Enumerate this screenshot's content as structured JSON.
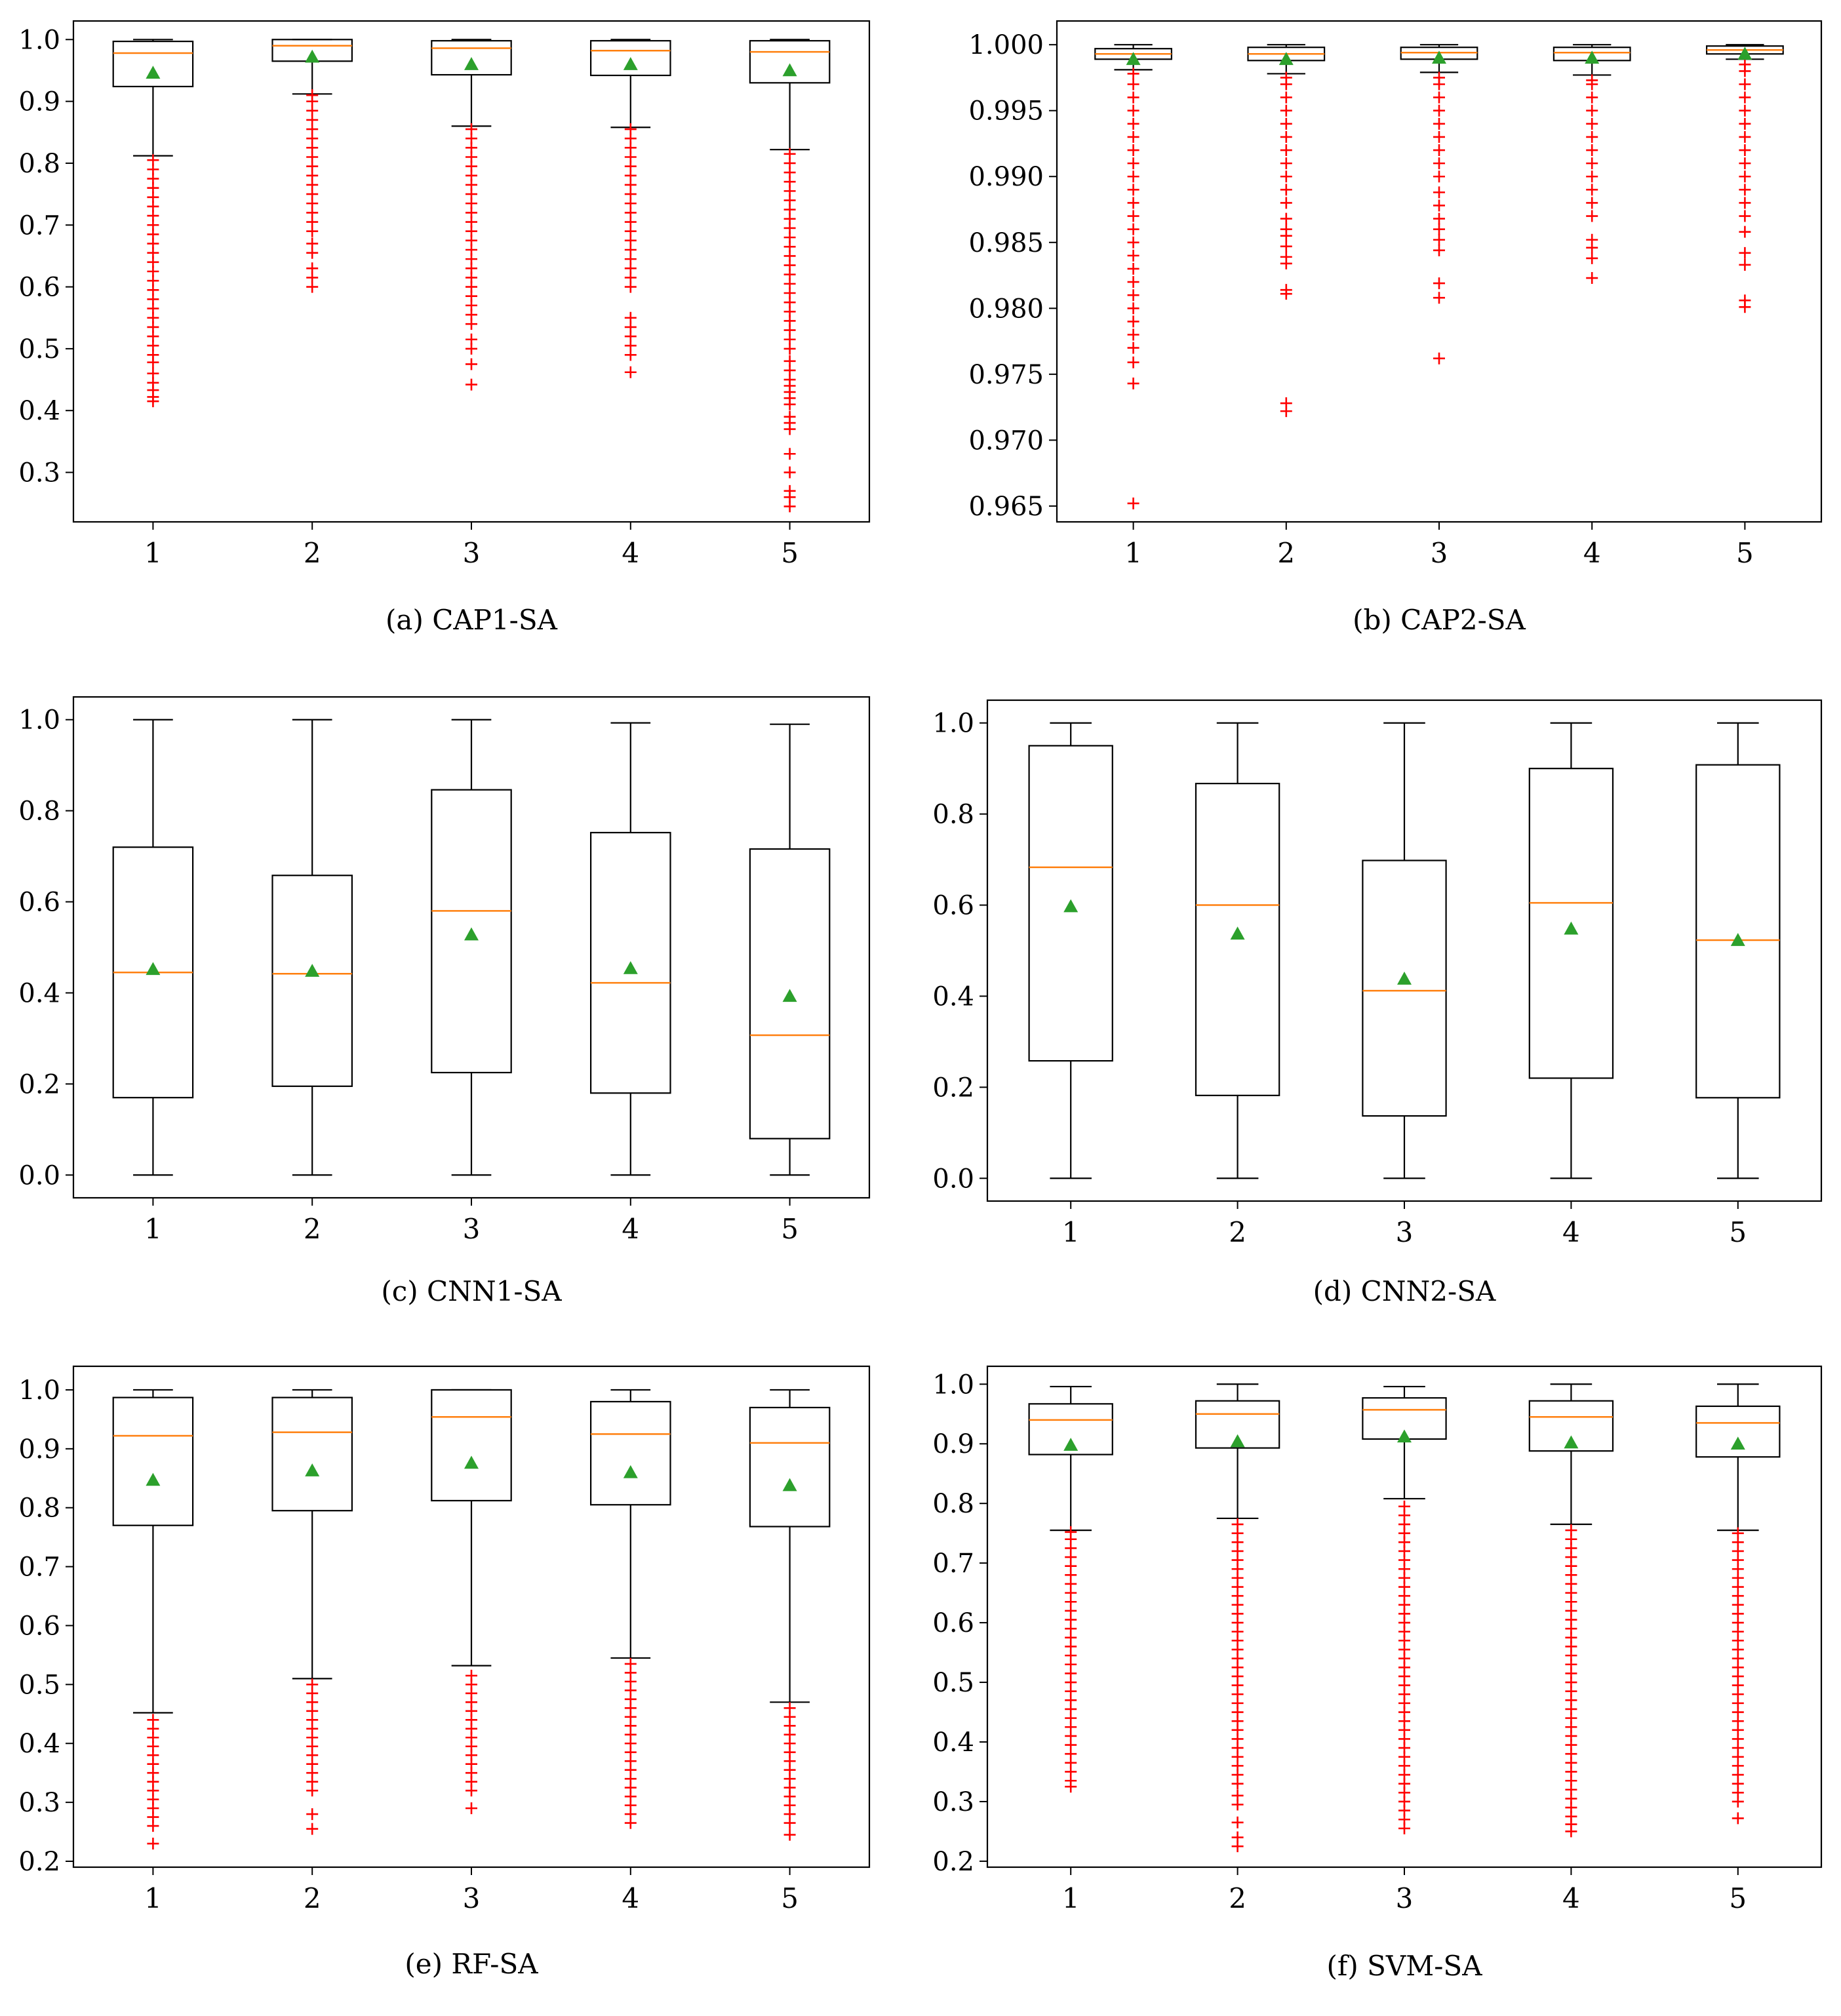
{
  "chart_data": [
    {
      "type": "box",
      "caption": "(a) CAP1-SA",
      "categories": [
        "1",
        "2",
        "3",
        "4",
        "5"
      ],
      "ylim": [
        0.22,
        1.03
      ],
      "yticks": [
        0.3,
        0.4,
        0.5,
        0.6,
        0.7,
        0.8,
        0.9,
        1.0
      ],
      "tick_labels": [
        "0.3",
        "0.4",
        "0.5",
        "0.6",
        "0.7",
        "0.8",
        "0.9",
        "1.0"
      ],
      "boxes": [
        {
          "whisker_low": 0.812,
          "q1": 0.924,
          "median": 0.978,
          "q3": 0.997,
          "whisker_high": 1.0,
          "mean": 0.946,
          "outliers": [
            0.415,
            0.422,
            0.433,
            0.445,
            0.46,
            0.478,
            0.49,
            0.505,
            0.52,
            0.535,
            0.55,
            0.565,
            0.58,
            0.595,
            0.61,
            0.625,
            0.64,
            0.655,
            0.67,
            0.685,
            0.7,
            0.715,
            0.73,
            0.745,
            0.76,
            0.775,
            0.79,
            0.805
          ]
        },
        {
          "whisker_low": 0.912,
          "q1": 0.965,
          "median": 0.99,
          "q3": 1.0,
          "whisker_high": 1.0,
          "mean": 0.972,
          "outliers": [
            0.6,
            0.615,
            0.63,
            0.655,
            0.67,
            0.69,
            0.705,
            0.72,
            0.735,
            0.75,
            0.765,
            0.78,
            0.795,
            0.81,
            0.825,
            0.84,
            0.855,
            0.87,
            0.885,
            0.9,
            0.91
          ]
        },
        {
          "whisker_low": 0.86,
          "q1": 0.943,
          "median": 0.986,
          "q3": 0.998,
          "whisker_high": 1.0,
          "mean": 0.96,
          "outliers": [
            0.442,
            0.475,
            0.5,
            0.515,
            0.54,
            0.555,
            0.57,
            0.585,
            0.6,
            0.615,
            0.63,
            0.645,
            0.66,
            0.675,
            0.69,
            0.705,
            0.72,
            0.735,
            0.75,
            0.765,
            0.78,
            0.795,
            0.81,
            0.825,
            0.84,
            0.855
          ]
        },
        {
          "whisker_low": 0.858,
          "q1": 0.942,
          "median": 0.982,
          "q3": 0.998,
          "whisker_high": 1.0,
          "mean": 0.96,
          "outliers": [
            0.462,
            0.49,
            0.505,
            0.52,
            0.535,
            0.55,
            0.6,
            0.615,
            0.63,
            0.645,
            0.66,
            0.675,
            0.69,
            0.705,
            0.72,
            0.735,
            0.75,
            0.765,
            0.78,
            0.795,
            0.81,
            0.825,
            0.84,
            0.855
          ]
        },
        {
          "whisker_low": 0.822,
          "q1": 0.93,
          "median": 0.98,
          "q3": 0.998,
          "whisker_high": 1.0,
          "mean": 0.95,
          "outliers": [
            0.245,
            0.26,
            0.27,
            0.3,
            0.33,
            0.37,
            0.38,
            0.39,
            0.41,
            0.42,
            0.43,
            0.44,
            0.45,
            0.465,
            0.48,
            0.5,
            0.515,
            0.53,
            0.545,
            0.56,
            0.575,
            0.59,
            0.605,
            0.62,
            0.635,
            0.65,
            0.665,
            0.68,
            0.695,
            0.71,
            0.725,
            0.74,
            0.755,
            0.77,
            0.785,
            0.8,
            0.815
          ]
        }
      ]
    },
    {
      "type": "box",
      "caption": "(b) CAP2-SA",
      "categories": [
        "1",
        "2",
        "3",
        "4",
        "5"
      ],
      "ylim": [
        0.9638,
        1.0018
      ],
      "yticks": [
        0.965,
        0.97,
        0.975,
        0.98,
        0.985,
        0.99,
        0.995,
        1.0
      ],
      "tick_labels": [
        "0.965",
        "0.970",
        "0.975",
        "0.980",
        "0.985",
        "0.990",
        "0.995",
        "1.000"
      ],
      "boxes": [
        {
          "whisker_low": 0.9981,
          "q1": 0.9989,
          "median": 0.9993,
          "q3": 0.9997,
          "whisker_high": 1.0,
          "mean": 0.9989,
          "outliers": [
            0.9652,
            0.9743,
            0.9759,
            0.977,
            0.978,
            0.979,
            0.98,
            0.981,
            0.982,
            0.983,
            0.984,
            0.985,
            0.986,
            0.987,
            0.988,
            0.989,
            0.99,
            0.991,
            0.992,
            0.993,
            0.994,
            0.995,
            0.996,
            0.997,
            0.9978
          ]
        },
        {
          "whisker_low": 0.9978,
          "q1": 0.9988,
          "median": 0.9993,
          "q3": 0.9998,
          "whisker_high": 1.0,
          "mean": 0.9989,
          "outliers": [
            0.9722,
            0.9728,
            0.9811,
            0.9814,
            0.9834,
            0.9839,
            0.9847,
            0.9855,
            0.986,
            0.9868,
            0.988,
            0.989,
            0.99,
            0.991,
            0.992,
            0.993,
            0.994,
            0.995,
            0.996,
            0.997,
            0.9975
          ]
        },
        {
          "whisker_low": 0.9979,
          "q1": 0.9989,
          "median": 0.9994,
          "q3": 0.9998,
          "whisker_high": 1.0,
          "mean": 0.999,
          "outliers": [
            0.9762,
            0.9808,
            0.9819,
            0.9844,
            0.9852,
            0.986,
            0.9868,
            0.9878,
            0.9888,
            0.99,
            0.991,
            0.992,
            0.993,
            0.994,
            0.995,
            0.996,
            0.997,
            0.9975
          ]
        },
        {
          "whisker_low": 0.9977,
          "q1": 0.9988,
          "median": 0.9994,
          "q3": 0.9998,
          "whisker_high": 1.0,
          "mean": 0.999,
          "outliers": [
            0.9823,
            0.9838,
            0.9846,
            0.9852,
            0.987,
            0.988,
            0.989,
            0.99,
            0.991,
            0.992,
            0.993,
            0.994,
            0.995,
            0.996,
            0.997,
            0.9973
          ]
        },
        {
          "whisker_low": 0.9989,
          "q1": 0.9993,
          "median": 0.9996,
          "q3": 0.9999,
          "whisker_high": 1.0,
          "mean": 0.9993,
          "outliers": [
            0.9801,
            0.9806,
            0.9833,
            0.9842,
            0.9858,
            0.987,
            0.988,
            0.989,
            0.99,
            0.991,
            0.992,
            0.993,
            0.994,
            0.995,
            0.996,
            0.997,
            0.998,
            0.9985
          ]
        }
      ]
    },
    {
      "type": "box",
      "caption": "(c) CNN1-SA",
      "categories": [
        "1",
        "2",
        "3",
        "4",
        "5"
      ],
      "ylim": [
        -0.05,
        1.05
      ],
      "yticks": [
        0.0,
        0.2,
        0.4,
        0.6,
        0.8,
        1.0
      ],
      "tick_labels": [
        "0.0",
        "0.2",
        "0.4",
        "0.6",
        "0.8",
        "1.0"
      ],
      "boxes": [
        {
          "whisker_low": 0.0,
          "q1": 0.17,
          "median": 0.445,
          "q3": 0.72,
          "whisker_high": 1.0,
          "mean": 0.452,
          "outliers": []
        },
        {
          "whisker_low": 0.0,
          "q1": 0.195,
          "median": 0.442,
          "q3": 0.658,
          "whisker_high": 1.0,
          "mean": 0.448,
          "outliers": []
        },
        {
          "whisker_low": 0.0,
          "q1": 0.225,
          "median": 0.58,
          "q3": 0.846,
          "whisker_high": 1.0,
          "mean": 0.528,
          "outliers": []
        },
        {
          "whisker_low": 0.0,
          "q1": 0.18,
          "median": 0.422,
          "q3": 0.752,
          "whisker_high": 0.993,
          "mean": 0.454,
          "outliers": []
        },
        {
          "whisker_low": 0.0,
          "q1": 0.08,
          "median": 0.307,
          "q3": 0.716,
          "whisker_high": 0.99,
          "mean": 0.393,
          "outliers": []
        }
      ]
    },
    {
      "type": "box",
      "caption": "(d) CNN2-SA",
      "categories": [
        "1",
        "2",
        "3",
        "4",
        "5"
      ],
      "ylim": [
        -0.05,
        1.05
      ],
      "yticks": [
        0.0,
        0.2,
        0.4,
        0.6,
        0.8,
        1.0
      ],
      "tick_labels": [
        "0.0",
        "0.2",
        "0.4",
        "0.6",
        "0.8",
        "1.0"
      ],
      "boxes": [
        {
          "whisker_low": 0.0,
          "q1": 0.258,
          "median": 0.683,
          "q3": 0.95,
          "whisker_high": 1.0,
          "mean": 0.597,
          "outliers": []
        },
        {
          "whisker_low": 0.0,
          "q1": 0.182,
          "median": 0.6,
          "q3": 0.867,
          "whisker_high": 1.0,
          "mean": 0.537,
          "outliers": []
        },
        {
          "whisker_low": 0.0,
          "q1": 0.137,
          "median": 0.412,
          "q3": 0.698,
          "whisker_high": 1.0,
          "mean": 0.438,
          "outliers": []
        },
        {
          "whisker_low": 0.0,
          "q1": 0.22,
          "median": 0.605,
          "q3": 0.9,
          "whisker_high": 1.0,
          "mean": 0.548,
          "outliers": []
        },
        {
          "whisker_low": 0.0,
          "q1": 0.177,
          "median": 0.523,
          "q3": 0.908,
          "whisker_high": 1.0,
          "mean": 0.523,
          "outliers": []
        }
      ]
    },
    {
      "type": "box",
      "caption": "(e) RF-SA",
      "categories": [
        "1",
        "2",
        "3",
        "4",
        "5"
      ],
      "ylim": [
        0.19,
        1.04
      ],
      "yticks": [
        0.2,
        0.3,
        0.4,
        0.5,
        0.6,
        0.7,
        0.8,
        0.9,
        1.0
      ],
      "tick_labels": [
        "0.2",
        "0.3",
        "0.4",
        "0.5",
        "0.6",
        "0.7",
        "0.8",
        "0.9",
        "1.0"
      ],
      "boxes": [
        {
          "whisker_low": 0.452,
          "q1": 0.77,
          "median": 0.922,
          "q3": 0.987,
          "whisker_high": 1.0,
          "mean": 0.847,
          "outliers": [
            0.23,
            0.26,
            0.275,
            0.29,
            0.305,
            0.32,
            0.335,
            0.35,
            0.365,
            0.38,
            0.395,
            0.41,
            0.425,
            0.44
          ]
        },
        {
          "whisker_low": 0.51,
          "q1": 0.795,
          "median": 0.928,
          "q3": 0.987,
          "whisker_high": 1.0,
          "mean": 0.863,
          "outliers": [
            0.255,
            0.28,
            0.32,
            0.335,
            0.35,
            0.365,
            0.38,
            0.395,
            0.41,
            0.425,
            0.44,
            0.455,
            0.47,
            0.485,
            0.5
          ]
        },
        {
          "whisker_low": 0.532,
          "q1": 0.812,
          "median": 0.954,
          "q3": 1.0,
          "whisker_high": 1.0,
          "mean": 0.876,
          "outliers": [
            0.29,
            0.32,
            0.335,
            0.35,
            0.365,
            0.38,
            0.395,
            0.41,
            0.425,
            0.44,
            0.455,
            0.47,
            0.485,
            0.5,
            0.515
          ]
        },
        {
          "whisker_low": 0.545,
          "q1": 0.805,
          "median": 0.925,
          "q3": 0.98,
          "whisker_high": 1.0,
          "mean": 0.86,
          "outliers": [
            0.265,
            0.28,
            0.295,
            0.31,
            0.325,
            0.34,
            0.355,
            0.37,
            0.385,
            0.4,
            0.415,
            0.43,
            0.445,
            0.46,
            0.475,
            0.49,
            0.505,
            0.52,
            0.535
          ]
        },
        {
          "whisker_low": 0.47,
          "q1": 0.768,
          "median": 0.91,
          "q3": 0.97,
          "whisker_high": 1.0,
          "mean": 0.838,
          "outliers": [
            0.245,
            0.265,
            0.28,
            0.295,
            0.31,
            0.325,
            0.34,
            0.355,
            0.37,
            0.385,
            0.4,
            0.415,
            0.43,
            0.445,
            0.46
          ]
        }
      ]
    },
    {
      "type": "box",
      "caption": "(f) SVM-SA",
      "categories": [
        "1",
        "2",
        "3",
        "4",
        "5"
      ],
      "ylim": [
        0.19,
        1.03
      ],
      "yticks": [
        0.2,
        0.3,
        0.4,
        0.5,
        0.6,
        0.7,
        0.8,
        0.9,
        1.0
      ],
      "tick_labels": [
        "0.2",
        "0.3",
        "0.4",
        "0.5",
        "0.6",
        "0.7",
        "0.8",
        "0.9",
        "1.0"
      ],
      "boxes": [
        {
          "whisker_low": 0.755,
          "q1": 0.882,
          "median": 0.94,
          "q3": 0.967,
          "whisker_high": 0.996,
          "mean": 0.898,
          "outliers": [
            0.325,
            0.335,
            0.35,
            0.365,
            0.38,
            0.395,
            0.41,
            0.425,
            0.44,
            0.455,
            0.47,
            0.485,
            0.5,
            0.515,
            0.53,
            0.545,
            0.56,
            0.575,
            0.59,
            0.605,
            0.62,
            0.635,
            0.65,
            0.665,
            0.68,
            0.695,
            0.71,
            0.725,
            0.74,
            0.752
          ]
        },
        {
          "whisker_low": 0.775,
          "q1": 0.893,
          "median": 0.95,
          "q3": 0.972,
          "whisker_high": 1.0,
          "mean": 0.904,
          "outliers": [
            0.225,
            0.24,
            0.265,
            0.295,
            0.31,
            0.33,
            0.345,
            0.36,
            0.375,
            0.39,
            0.405,
            0.42,
            0.435,
            0.45,
            0.465,
            0.48,
            0.495,
            0.51,
            0.525,
            0.54,
            0.555,
            0.57,
            0.585,
            0.6,
            0.615,
            0.63,
            0.645,
            0.66,
            0.675,
            0.69,
            0.705,
            0.72,
            0.735,
            0.75,
            0.765
          ]
        },
        {
          "whisker_low": 0.808,
          "q1": 0.908,
          "median": 0.957,
          "q3": 0.977,
          "whisker_high": 0.996,
          "mean": 0.912,
          "outliers": [
            0.255,
            0.27,
            0.285,
            0.3,
            0.315,
            0.33,
            0.345,
            0.36,
            0.375,
            0.39,
            0.405,
            0.42,
            0.435,
            0.45,
            0.465,
            0.48,
            0.495,
            0.51,
            0.525,
            0.54,
            0.555,
            0.57,
            0.585,
            0.6,
            0.615,
            0.63,
            0.645,
            0.66,
            0.675,
            0.69,
            0.705,
            0.72,
            0.735,
            0.75,
            0.765,
            0.78,
            0.795
          ]
        },
        {
          "whisker_low": 0.765,
          "q1": 0.888,
          "median": 0.945,
          "q3": 0.972,
          "whisker_high": 1.0,
          "mean": 0.902,
          "outliers": [
            0.25,
            0.262,
            0.275,
            0.29,
            0.305,
            0.32,
            0.335,
            0.35,
            0.365,
            0.38,
            0.395,
            0.41,
            0.425,
            0.44,
            0.455,
            0.47,
            0.485,
            0.5,
            0.515,
            0.53,
            0.545,
            0.56,
            0.575,
            0.59,
            0.605,
            0.62,
            0.635,
            0.65,
            0.665,
            0.68,
            0.695,
            0.71,
            0.725,
            0.74,
            0.755
          ]
        },
        {
          "whisker_low": 0.755,
          "q1": 0.878,
          "median": 0.935,
          "q3": 0.963,
          "whisker_high": 1.0,
          "mean": 0.9,
          "outliers": [
            0.272,
            0.3,
            0.315,
            0.33,
            0.345,
            0.36,
            0.375,
            0.39,
            0.405,
            0.42,
            0.435,
            0.45,
            0.465,
            0.48,
            0.495,
            0.51,
            0.525,
            0.54,
            0.555,
            0.57,
            0.585,
            0.6,
            0.615,
            0.63,
            0.645,
            0.66,
            0.675,
            0.69,
            0.705,
            0.72,
            0.735,
            0.75
          ]
        }
      ]
    }
  ],
  "style": {
    "median_color": "#ff7f0e",
    "mean_color": "#2ca02c",
    "outlier_color": "#ff0000",
    "box_color": "#000000"
  }
}
